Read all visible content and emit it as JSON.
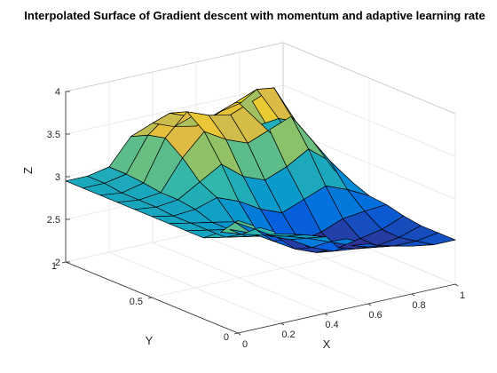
{
  "chart_data": {
    "type": "surface",
    "title": "Interpolated Surface of Gradient descent with momentum and adaptive learning rate",
    "xlabel": "X",
    "ylabel": "Y",
    "zlabel": "Z",
    "xlim": [
      0,
      1
    ],
    "ylim": [
      0,
      1
    ],
    "zlim": [
      2,
      4
    ],
    "x_ticks": [
      0,
      0.2,
      0.4,
      0.6,
      0.8,
      1
    ],
    "x_tick_labels": [
      "0",
      "0.2",
      "0.4",
      "0.6",
      "0.8",
      "1"
    ],
    "y_ticks": [
      0,
      0.5,
      1
    ],
    "y_tick_labels": [
      "0",
      "0.5",
      "1"
    ],
    "z_ticks": [
      2,
      2.5,
      3,
      3.5,
      4
    ],
    "z_tick_labels": [
      "2",
      "2.5",
      "3",
      "3.5",
      "4"
    ],
    "grid": true,
    "colormap": "parula",
    "edge_color": "#000000",
    "x": [
      0,
      0.1,
      0.2,
      0.3,
      0.4,
      0.5,
      0.6,
      0.7,
      0.8,
      0.9,
      1.0
    ],
    "y": [
      0,
      0.1,
      0.2,
      0.3,
      0.4,
      0.5,
      0.6,
      0.7,
      0.8,
      0.9,
      1.0
    ],
    "z": [
      [
        3.32,
        3.18,
        3.05,
        2.98,
        2.9,
        2.82,
        2.7,
        2.62,
        2.56,
        2.52,
        2.52
      ],
      [
        3.1,
        3.02,
        2.95,
        2.88,
        2.8,
        2.7,
        2.6,
        2.52,
        2.48,
        2.48,
        2.52
      ],
      [
        2.95,
        2.9,
        2.85,
        2.8,
        2.7,
        2.55,
        2.45,
        2.42,
        2.4,
        2.44,
        2.52
      ],
      [
        2.95,
        2.9,
        2.85,
        2.75,
        2.6,
        2.45,
        2.35,
        2.35,
        2.4,
        2.45,
        2.55
      ],
      [
        2.95,
        2.9,
        2.85,
        2.8,
        2.65,
        2.5,
        2.4,
        2.45,
        2.55,
        2.58,
        2.6
      ],
      [
        2.95,
        2.9,
        2.92,
        3.0,
        2.9,
        2.75,
        2.65,
        2.75,
        2.85,
        2.75,
        2.62
      ],
      [
        2.95,
        2.92,
        2.95,
        3.1,
        3.25,
        3.05,
        2.95,
        3.05,
        3.2,
        3.0,
        2.7
      ],
      [
        2.95,
        2.92,
        2.95,
        3.3,
        3.55,
        3.4,
        3.3,
        3.4,
        3.5,
        3.15,
        2.75
      ],
      [
        2.95,
        2.92,
        2.98,
        3.45,
        3.7,
        3.6,
        3.55,
        3.65,
        3.75,
        3.3,
        2.8
      ],
      [
        2.95,
        2.95,
        3.0,
        3.4,
        3.6,
        3.5,
        3.45,
        3.55,
        3.65,
        3.25,
        2.8
      ],
      [
        2.95,
        2.95,
        3.0,
        3.3,
        3.4,
        3.3,
        3.25,
        3.35,
        3.4,
        3.1,
        2.8
      ]
    ]
  }
}
